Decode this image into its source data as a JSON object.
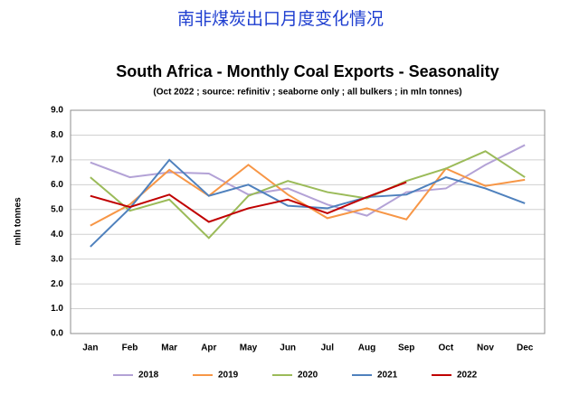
{
  "header": "南非煤炭出口月度变化情况",
  "chart_data": {
    "type": "line",
    "title": "South Africa - Monthly Coal Exports - Seasonality",
    "subtitle": "(Oct 2022 ; source: refinitiv ; seaborne only ; all bulkers ; in mln tonnes)",
    "y_label": "mln tonnes",
    "categories": [
      "Jan",
      "Feb",
      "Mar",
      "Apr",
      "May",
      "Jun",
      "Jul",
      "Aug",
      "Sep",
      "Oct",
      "Nov",
      "Dec"
    ],
    "ylim": [
      0,
      9
    ],
    "yticks": [
      {
        "value": 0,
        "label": "0.0"
      },
      {
        "value": 1,
        "label": "1.0"
      },
      {
        "value": 2,
        "label": "2.0"
      },
      {
        "value": 3,
        "label": "3.0"
      },
      {
        "value": 4,
        "label": "4.0"
      },
      {
        "value": 5,
        "label": "5.0"
      },
      {
        "value": 6,
        "label": "6.0"
      },
      {
        "value": 7,
        "label": "7.0"
      },
      {
        "value": 8,
        "label": "8.0"
      },
      {
        "value": 9,
        "label": "9.0"
      }
    ],
    "grid": true,
    "legend": "bottom",
    "series": [
      {
        "name": "2018",
        "color": "#b3a2d6",
        "values": [
          6.9,
          6.3,
          6.5,
          6.45,
          5.6,
          5.85,
          5.2,
          4.75,
          5.7,
          5.85,
          6.8,
          7.6
        ]
      },
      {
        "name": "2019",
        "color": "#f79646",
        "values": [
          4.35,
          5.2,
          6.6,
          5.55,
          6.8,
          5.6,
          4.65,
          5.05,
          4.6,
          6.65,
          5.95,
          6.2
        ]
      },
      {
        "name": "2020",
        "color": "#9bbb59",
        "values": [
          6.3,
          4.95,
          5.4,
          3.85,
          5.55,
          6.15,
          5.7,
          5.45,
          6.15,
          6.65,
          7.35,
          6.3
        ]
      },
      {
        "name": "2021",
        "color": "#4f81bd",
        "values": [
          3.5,
          5.05,
          7.0,
          5.55,
          6.0,
          5.15,
          5.05,
          5.5,
          5.6,
          6.3,
          5.85,
          5.25
        ]
      },
      {
        "name": "2022",
        "color": "#c00000",
        "values": [
          5.55,
          5.1,
          5.6,
          4.5,
          5.05,
          5.4,
          4.85,
          5.5,
          6.1,
          null,
          null,
          null
        ]
      }
    ]
  }
}
